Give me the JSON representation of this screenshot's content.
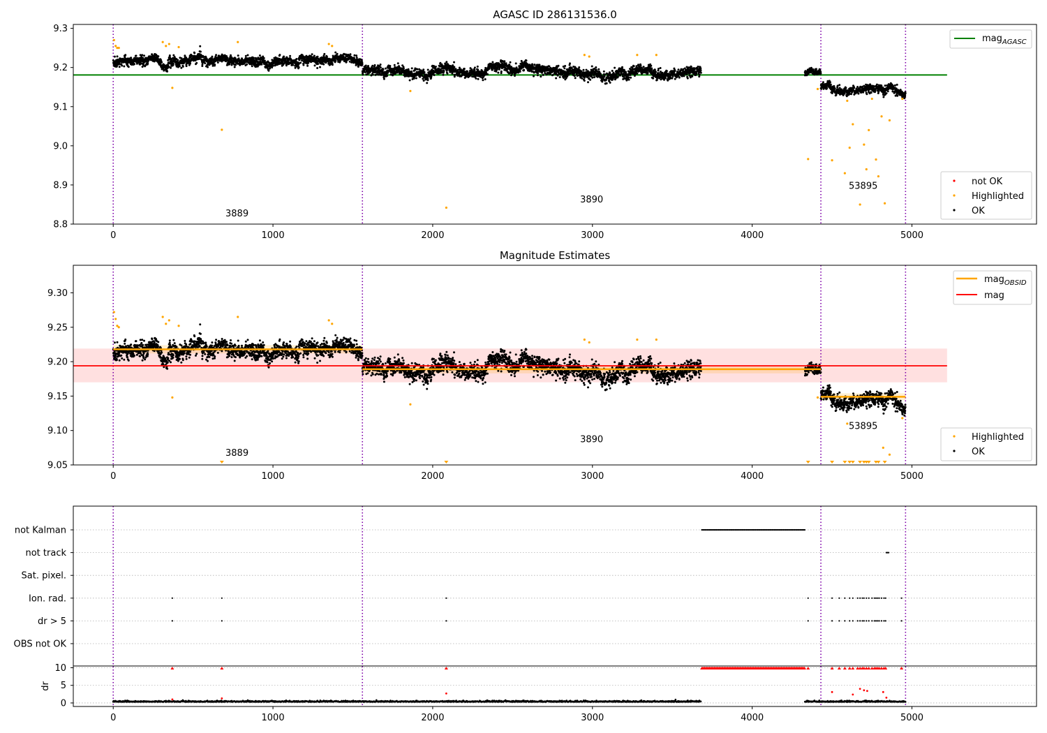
{
  "chart_data": [
    {
      "type": "scatter",
      "title": "AGASC ID 286131536.0",
      "xlim": [
        -250,
        5780
      ],
      "ylim": [
        8.8,
        9.31
      ],
      "xticks": [
        0,
        1000,
        2000,
        3000,
        4000,
        5000
      ],
      "yticks": [
        8.8,
        8.9,
        9.0,
        9.1,
        9.2,
        9.3
      ],
      "yticklabels": [
        "8.8",
        "8.9",
        "9.0",
        "9.1",
        "9.2",
        "9.3"
      ],
      "vlines": [
        0,
        1560,
        4430,
        4960
      ],
      "obsid_annotations": [
        {
          "text": "3889",
          "x": 775,
          "y": 8.82
        },
        {
          "text": "3890",
          "x": 2995,
          "y": 8.855
        },
        {
          "text": "53895",
          "x": 4695,
          "y": 8.89
        }
      ],
      "hline": {
        "name": "mag",
        "name_sub": "AGASC",
        "y": 9.181,
        "x": [
          -250,
          5220
        ],
        "color": "#008000"
      },
      "segments": [
        {
          "x0": 0,
          "x1": 1560,
          "mean": 9.215,
          "sd": 0.01,
          "trend": 0.0
        },
        {
          "x0": 1560,
          "x1": 3680,
          "mean": 9.188,
          "sd": 0.011,
          "trend": 0.0
        },
        {
          "x0": 4330,
          "x1": 4430,
          "mean": 9.187,
          "sd": 0.007,
          "trend": 0.0
        },
        {
          "x0": 4430,
          "x1": 4960,
          "mean": 9.15,
          "sd": 0.009,
          "trend": -0.01
        }
      ],
      "highlighted_points": [
        [
          5,
          9.27
        ],
        [
          15,
          9.255
        ],
        [
          25,
          9.25
        ],
        [
          35,
          9.25
        ],
        [
          310,
          9.265
        ],
        [
          330,
          9.255
        ],
        [
          350,
          9.26
        ],
        [
          370,
          9.148
        ],
        [
          410,
          9.252
        ],
        [
          680,
          9.041
        ],
        [
          780,
          9.265
        ],
        [
          1350,
          9.26
        ],
        [
          1370,
          9.255
        ],
        [
          1860,
          9.14
        ],
        [
          2085,
          8.842
        ],
        [
          2950,
          9.232
        ],
        [
          2980,
          9.228
        ],
        [
          3280,
          9.232
        ],
        [
          3400,
          9.232
        ],
        [
          4350,
          8.966
        ],
        [
          4410,
          9.145
        ],
        [
          4500,
          8.963
        ],
        [
          4595,
          9.115
        ],
        [
          4610,
          8.995
        ],
        [
          4630,
          9.055
        ],
        [
          4675,
          8.85
        ],
        [
          4580,
          8.93
        ],
        [
          4700,
          9.003
        ],
        [
          4715,
          8.94
        ],
        [
          4730,
          9.04
        ],
        [
          4750,
          9.12
        ],
        [
          4775,
          8.965
        ],
        [
          4790,
          8.922
        ],
        [
          4810,
          9.075
        ],
        [
          4830,
          8.853
        ],
        [
          4860,
          9.065
        ],
        [
          4940,
          9.12
        ]
      ],
      "legend": [
        {
          "label": "not OK",
          "color": "#ff0000"
        },
        {
          "label": "Highlighted",
          "color": "#ffa500"
        },
        {
          "label": "OK",
          "color": "#000000"
        }
      ]
    },
    {
      "type": "scatter",
      "title": "Magnitude Estimates",
      "xlim": [
        -250,
        5780
      ],
      "ylim": [
        9.05,
        9.34
      ],
      "xticks": [
        0,
        1000,
        2000,
        3000,
        4000,
        5000
      ],
      "yticks": [
        9.05,
        9.1,
        9.15,
        9.2,
        9.25,
        9.3
      ],
      "yticklabels": [
        "9.05",
        "9.10",
        "9.15",
        "9.20",
        "9.25",
        "9.30"
      ],
      "vlines": [
        0,
        1560,
        4430,
        4960
      ],
      "obsid_annotations": [
        {
          "text": "3889",
          "x": 775,
          "y": 9.063
        },
        {
          "text": "3890",
          "x": 2995,
          "y": 9.083
        },
        {
          "text": "53895",
          "x": 4695,
          "y": 9.102
        }
      ],
      "mag": {
        "y": 9.194,
        "band": [
          9.17,
          9.219
        ],
        "x": [
          -250,
          5220
        ],
        "color": "#ff0000"
      },
      "mag_obsid": [
        {
          "x": [
            0,
            1560
          ],
          "y": 9.218,
          "band": [
            9.212,
            9.224
          ]
        },
        {
          "x": [
            1560,
            4430
          ],
          "y": 9.189,
          "band": [
            9.183,
            9.195
          ]
        },
        {
          "x": [
            4430,
            4960
          ],
          "y": 9.149,
          "band": [
            9.144,
            9.154
          ]
        }
      ],
      "segments": [
        {
          "x0": 0,
          "x1": 1560,
          "mean": 9.215,
          "sd": 0.01,
          "trend": 0.0
        },
        {
          "x0": 1560,
          "x1": 3680,
          "mean": 9.188,
          "sd": 0.011,
          "trend": 0.0
        },
        {
          "x0": 4330,
          "x1": 4430,
          "mean": 9.187,
          "sd": 0.007,
          "trend": 0.0
        },
        {
          "x0": 4430,
          "x1": 4960,
          "mean": 9.15,
          "sd": 0.009,
          "trend": -0.01
        }
      ],
      "highlighted_points": [
        [
          5,
          9.272
        ],
        [
          15,
          9.262
        ],
        [
          25,
          9.252
        ],
        [
          35,
          9.25
        ],
        [
          310,
          9.265
        ],
        [
          330,
          9.255
        ],
        [
          350,
          9.26
        ],
        [
          370,
          9.148
        ],
        [
          410,
          9.252
        ],
        [
          780,
          9.265
        ],
        [
          1350,
          9.26
        ],
        [
          1370,
          9.255
        ],
        [
          1860,
          9.138
        ],
        [
          2950,
          9.232
        ],
        [
          2980,
          9.228
        ],
        [
          3280,
          9.232
        ],
        [
          3400,
          9.232
        ],
        [
          4410,
          9.148
        ],
        [
          4595,
          9.11
        ],
        [
          4820,
          9.075
        ],
        [
          4860,
          9.065
        ],
        [
          4940,
          9.118
        ]
      ],
      "clipped_points_x": [
        680,
        2085,
        4350,
        4500,
        4580,
        4610,
        4630,
        4675,
        4700,
        4715,
        4730,
        4775,
        4790,
        4830
      ],
      "legend_lines": [
        {
          "label": "mag",
          "label_sub": "OBSID",
          "color": "#ffa500"
        },
        {
          "label": "mag",
          "label_sub": "",
          "color": "#ff0000"
        }
      ],
      "legend_points": [
        {
          "label": "Highlighted",
          "color": "#ffa500"
        },
        {
          "label": "OK",
          "color": "#000000"
        }
      ]
    },
    {
      "type": "scatter",
      "xlim": [
        -250,
        5780
      ],
      "xticks": [
        0,
        1000,
        2000,
        3000,
        4000,
        5000
      ],
      "vlines": [
        0,
        1560,
        4430,
        4960
      ],
      "flag_rows": [
        "not Kalman",
        "not track",
        "Sat. pixel.",
        "Ion. rad.",
        "dr > 5",
        "OBS not OK"
      ],
      "flags": {
        "not Kalman": {
          "ranges": [
            [
              3685,
              4330
            ]
          ],
          "points": []
        },
        "not track": {
          "ranges": [
            [
              4840,
              4855
            ]
          ],
          "points": []
        },
        "Sat. pixel.": {
          "ranges": [],
          "points": []
        },
        "Ion. rad.": {
          "ranges": [],
          "points": [
            370,
            680,
            2085,
            4350,
            4500,
            4545,
            4580,
            4610,
            4630,
            4660,
            4675,
            4690,
            4700,
            4715,
            4730,
            4750,
            4765,
            4775,
            4785,
            4795,
            4810,
            4825,
            4835,
            4935
          ]
        },
        "dr > 5": {
          "ranges": [],
          "points": [
            370,
            680,
            2085,
            4350,
            4500,
            4545,
            4580,
            4610,
            4630,
            4660,
            4675,
            4690,
            4700,
            4715,
            4730,
            4750,
            4765,
            4775,
            4785,
            4795,
            4810,
            4825,
            4835,
            4935
          ]
        },
        "OBS not OK": {
          "ranges": [],
          "points": []
        }
      },
      "dr": {
        "ylabel": "dr",
        "ylim": [
          -1,
          10.5
        ],
        "yticks": [
          0,
          5,
          10
        ],
        "yticklabels": [
          "0",
          "5",
          "10"
        ],
        "baseline_segments": [
          [
            0,
            3680
          ],
          [
            4330,
            4960
          ]
        ],
        "baseline_level": 0.3,
        "outliers": [
          [
            370,
            1.0
          ],
          [
            680,
            1.3
          ],
          [
            2085,
            2.7
          ],
          [
            4500,
            3.1
          ],
          [
            4630,
            2.4
          ],
          [
            4675,
            4.0
          ],
          [
            4700,
            3.6
          ],
          [
            4720,
            3.4
          ],
          [
            4820,
            3.1
          ],
          [
            4840,
            1.5
          ]
        ],
        "clipped_ranges": [
          [
            3685,
            4330
          ]
        ],
        "clipped_points": [
          370,
          680,
          2085,
          4350,
          4500,
          4545,
          4580,
          4610,
          4630,
          4660,
          4675,
          4690,
          4700,
          4715,
          4730,
          4750,
          4765,
          4775,
          4785,
          4795,
          4810,
          4825,
          4835,
          4935
        ]
      }
    }
  ]
}
